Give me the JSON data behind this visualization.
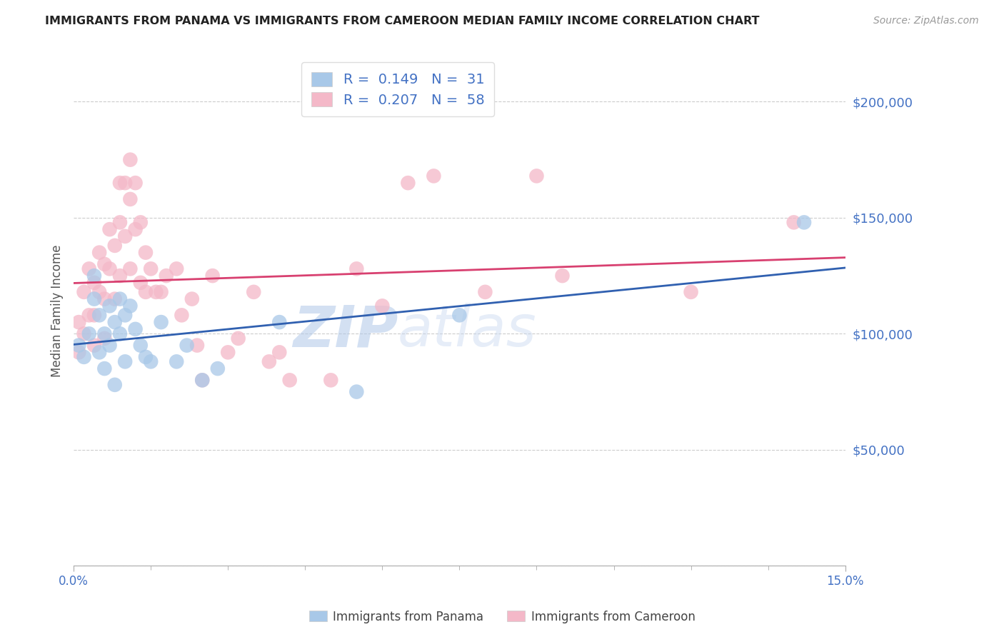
{
  "title": "IMMIGRANTS FROM PANAMA VS IMMIGRANTS FROM CAMEROON MEDIAN FAMILY INCOME CORRELATION CHART",
  "source": "Source: ZipAtlas.com",
  "ylabel": "Median Family Income",
  "yticks": [
    0,
    50000,
    100000,
    150000,
    200000
  ],
  "ytick_labels": [
    "",
    "$50,000",
    "$100,000",
    "$150,000",
    "$200,000"
  ],
  "xlim": [
    0.0,
    0.15
  ],
  "ylim": [
    0,
    220000
  ],
  "watermark": "ZIPatlas",
  "legend_r_panama": "0.149",
  "legend_n_panama": "31",
  "legend_r_cameroon": "0.207",
  "legend_n_cameroon": "58",
  "panama_color": "#a8c8e8",
  "cameroon_color": "#f4b8c8",
  "panama_line_color": "#3060b0",
  "cameroon_line_color": "#d84070",
  "value_color": "#4472c4",
  "panama_x": [
    0.001,
    0.002,
    0.003,
    0.004,
    0.004,
    0.005,
    0.005,
    0.006,
    0.006,
    0.007,
    0.007,
    0.008,
    0.008,
    0.009,
    0.009,
    0.01,
    0.01,
    0.011,
    0.012,
    0.013,
    0.014,
    0.015,
    0.017,
    0.02,
    0.022,
    0.025,
    0.028,
    0.04,
    0.055,
    0.075,
    0.142
  ],
  "panama_y": [
    95000,
    90000,
    100000,
    125000,
    115000,
    108000,
    92000,
    100000,
    85000,
    112000,
    95000,
    105000,
    78000,
    115000,
    100000,
    108000,
    88000,
    112000,
    102000,
    95000,
    90000,
    88000,
    105000,
    88000,
    95000,
    80000,
    85000,
    105000,
    75000,
    108000,
    148000
  ],
  "cameroon_x": [
    0.001,
    0.001,
    0.002,
    0.002,
    0.003,
    0.003,
    0.004,
    0.004,
    0.004,
    0.005,
    0.005,
    0.006,
    0.006,
    0.006,
    0.007,
    0.007,
    0.008,
    0.008,
    0.009,
    0.009,
    0.009,
    0.01,
    0.01,
    0.011,
    0.011,
    0.011,
    0.012,
    0.012,
    0.013,
    0.013,
    0.014,
    0.014,
    0.015,
    0.016,
    0.017,
    0.018,
    0.02,
    0.021,
    0.023,
    0.024,
    0.025,
    0.027,
    0.03,
    0.032,
    0.035,
    0.038,
    0.04,
    0.042,
    0.05,
    0.055,
    0.06,
    0.065,
    0.07,
    0.08,
    0.09,
    0.095,
    0.12,
    0.14
  ],
  "cameroon_y": [
    105000,
    92000,
    118000,
    100000,
    128000,
    108000,
    122000,
    108000,
    95000,
    135000,
    118000,
    130000,
    115000,
    98000,
    145000,
    128000,
    138000,
    115000,
    165000,
    148000,
    125000,
    165000,
    142000,
    175000,
    158000,
    128000,
    165000,
    145000,
    148000,
    122000,
    135000,
    118000,
    128000,
    118000,
    118000,
    125000,
    128000,
    108000,
    115000,
    95000,
    80000,
    125000,
    92000,
    98000,
    118000,
    88000,
    92000,
    80000,
    80000,
    128000,
    112000,
    165000,
    168000,
    118000,
    168000,
    125000,
    118000,
    148000
  ]
}
